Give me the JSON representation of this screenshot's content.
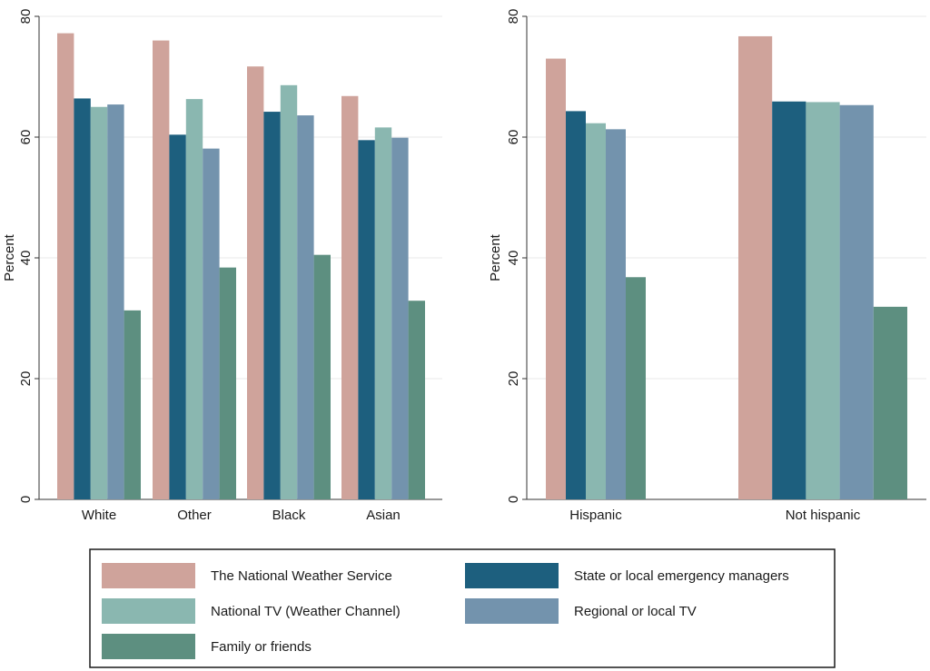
{
  "chart_data": [
    {
      "type": "bar",
      "ylabel": "Percent",
      "ylim": [
        0,
        80
      ],
      "yticks": [
        0,
        20,
        40,
        60,
        80
      ],
      "grid": true,
      "categories": [
        "White",
        "Other",
        "Black",
        "Asian"
      ],
      "series": [
        {
          "name": "The National Weather Service",
          "color": "#cfa39b",
          "values": [
            77.2,
            76.0,
            71.7,
            66.8
          ]
        },
        {
          "name": "State or local emergency managers",
          "color": "#1d5f7e",
          "values": [
            66.4,
            60.4,
            64.2,
            59.5
          ]
        },
        {
          "name": "National TV (Weather Channel)",
          "color": "#8ab7b0",
          "values": [
            65.0,
            66.3,
            68.6,
            61.6
          ]
        },
        {
          "name": "Regional or local TV",
          "color": "#7393ad",
          "values": [
            65.4,
            58.1,
            63.6,
            59.9
          ]
        },
        {
          "name": "Family or friends",
          "color": "#5d8f80",
          "values": [
            31.3,
            38.4,
            40.5,
            32.9
          ]
        }
      ]
    },
    {
      "type": "bar",
      "ylabel": "Percent",
      "ylim": [
        0,
        80
      ],
      "yticks": [
        0,
        20,
        40,
        60,
        80
      ],
      "grid": true,
      "categories": [
        "Hispanic",
        "Not hispanic"
      ],
      "series": [
        {
          "name": "The National Weather Service",
          "color": "#cfa39b",
          "values": [
            73.0,
            76.7
          ]
        },
        {
          "name": "State or local emergency managers",
          "color": "#1d5f7e",
          "values": [
            64.3,
            65.9
          ]
        },
        {
          "name": "National TV (Weather Channel)",
          "color": "#8ab7b0",
          "values": [
            62.3,
            65.8
          ]
        },
        {
          "name": "Regional or local TV",
          "color": "#7393ad",
          "values": [
            61.3,
            65.3
          ]
        },
        {
          "name": "Family or friends",
          "color": "#5d8f80",
          "values": [
            36.8,
            31.9
          ]
        }
      ]
    }
  ],
  "legend": {
    "position": "bottom",
    "columns": 2,
    "items": [
      {
        "label": "The National Weather Service",
        "color": "#cfa39b"
      },
      {
        "label": "State or local emergency managers",
        "color": "#1d5f7e"
      },
      {
        "label": "National TV (Weather Channel)",
        "color": "#8ab7b0"
      },
      {
        "label": "Regional or local TV",
        "color": "#7393ad"
      },
      {
        "label": "Family or friends",
        "color": "#5d8f80"
      }
    ]
  }
}
